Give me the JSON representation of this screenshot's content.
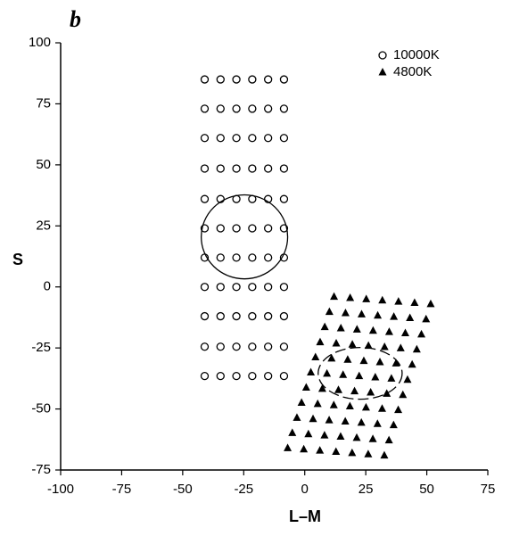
{
  "chart_data": {
    "type": "scatter",
    "panel_label": "b",
    "x_label": "L–M",
    "y_label": "S",
    "xlim": [
      -100,
      75
    ],
    "ylim": [
      -75,
      100
    ],
    "xticks": [
      -100,
      -75,
      -50,
      -25,
      0,
      25,
      50,
      75
    ],
    "yticks": [
      -75,
      -50,
      -25,
      0,
      25,
      50,
      75,
      100
    ],
    "legend": "upper right",
    "series": [
      {
        "name": "10000K",
        "color": "#000000",
        "marker": "open-circle",
        "x": [
          -41,
          -34.5,
          -28,
          -21.5,
          -15,
          -8.5,
          -41,
          -34.5,
          -28,
          -21.5,
          -15,
          -8.5,
          -41,
          -34.5,
          -28,
          -21.5,
          -15,
          -8.5,
          -41,
          -34.5,
          -28,
          -21.5,
          -15,
          -8.5,
          -41,
          -34.5,
          -28,
          -21.5,
          -15,
          -8.5,
          -41,
          -34.5,
          -28,
          -21.5,
          -15,
          -8.5,
          -41,
          -34.5,
          -28,
          -21.5,
          -15,
          -8.5,
          -41,
          -34.5,
          -28,
          -21.5,
          -15,
          -8.5,
          -41,
          -34.5,
          -28,
          -21.5,
          -15,
          -8.5,
          -41,
          -34.5,
          -28,
          -21.5,
          -15,
          -8.5,
          -41,
          -34.5,
          -28,
          -21.5,
          -15,
          -8.5
        ],
        "values": [
          85,
          85,
          85,
          85,
          85,
          85,
          73,
          73,
          73,
          73,
          73,
          73,
          61,
          61,
          61,
          61,
          61,
          61,
          48.5,
          48.5,
          48.5,
          48.5,
          48.5,
          48.5,
          36,
          36,
          36,
          36,
          36,
          36,
          24,
          24,
          24,
          24,
          24,
          24,
          12,
          12,
          12,
          12,
          12,
          12,
          0,
          0,
          0,
          0,
          0,
          0,
          -12,
          -12,
          -12,
          -12,
          -12,
          -12,
          -24.5,
          -24.5,
          -24.5,
          -24.5,
          -24.5,
          -24.5,
          -36.5,
          -36.5,
          -36.5,
          -36.5,
          -36.5,
          -36.5
        ]
      },
      {
        "name": "4800K",
        "color": "#000000",
        "marker": "filled-triangle",
        "x": [
          12,
          18.6,
          25.2,
          31.8,
          38.4,
          45,
          51.6,
          10.1,
          16.7,
          23.3,
          29.9,
          36.5,
          43.1,
          49.7,
          8.2,
          14.8,
          21.4,
          28,
          34.6,
          41.2,
          47.8,
          6.3,
          12.9,
          19.5,
          26.1,
          32.7,
          39.3,
          45.9,
          4.4,
          11,
          17.6,
          24.2,
          30.8,
          37.4,
          44,
          2.5,
          9.1,
          15.7,
          22.3,
          28.9,
          35.5,
          42.1,
          0.6,
          7.2,
          13.8,
          20.4,
          27,
          33.6,
          40.2,
          -1.3,
          5.3,
          11.9,
          18.5,
          25.1,
          31.7,
          38.3,
          -3.2,
          3.4,
          10,
          16.6,
          23.2,
          29.8,
          36.4,
          -5.1,
          1.5,
          8.1,
          14.7,
          21.3,
          27.9,
          34.5,
          -7,
          -0.4,
          6.2,
          12.8,
          19.4,
          26,
          32.6
        ],
        "values": [
          -4,
          -4.5,
          -5,
          -5.5,
          -6,
          -6.5,
          -7,
          -10.2,
          -10.7,
          -11.2,
          -11.7,
          -12.2,
          -12.7,
          -13.2,
          -16.4,
          -16.9,
          -17.4,
          -17.9,
          -18.4,
          -18.9,
          -19.4,
          -22.6,
          -23.1,
          -23.6,
          -24.1,
          -24.6,
          -25.1,
          -25.6,
          -28.8,
          -29.3,
          -29.8,
          -30.3,
          -30.8,
          -31.3,
          -31.8,
          -35,
          -35.5,
          -36,
          -36.5,
          -37,
          -37.5,
          -38,
          -41.2,
          -41.7,
          -42.2,
          -42.7,
          -43.2,
          -43.7,
          -44.2,
          -47.4,
          -47.9,
          -48.4,
          -48.9,
          -49.4,
          -49.9,
          -50.4,
          -53.6,
          -54.1,
          -54.6,
          -55.1,
          -55.6,
          -56.1,
          -56.6,
          -59.8,
          -60.3,
          -60.8,
          -61.3,
          -61.8,
          -62.3,
          -62.8,
          -66,
          -66.5,
          -67,
          -67.5,
          -68,
          -68.5,
          -69
        ]
      }
    ],
    "ellipses": [
      {
        "cx": -24.7,
        "cy": 20.5,
        "rx": 17.7,
        "ry": 17.2,
        "style": "solid"
      },
      {
        "cx": 22.7,
        "cy": -35.4,
        "rx": 17.2,
        "ry": 10.6,
        "style": "dashed"
      }
    ]
  }
}
